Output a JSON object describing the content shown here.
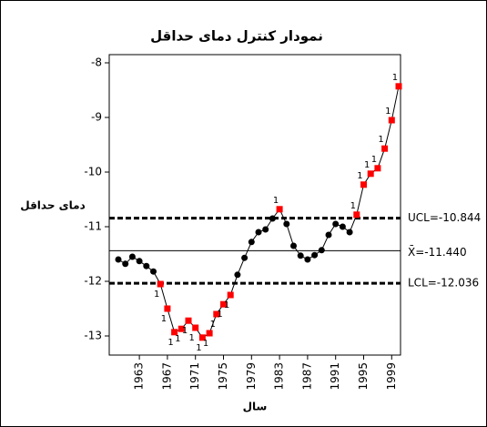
{
  "chart_data": {
    "type": "control",
    "title": "نمودار کنترل دمای حداقل",
    "x_label": "سال",
    "y_label": "دمای حداقل",
    "x": [
      1960,
      1961,
      1962,
      1963,
      1964,
      1965,
      1966,
      1967,
      1968,
      1969,
      1970,
      1971,
      1972,
      1973,
      1974,
      1975,
      1976,
      1977,
      1978,
      1979,
      1980,
      1981,
      1982,
      1983,
      1984,
      1985,
      1986,
      1987,
      1988,
      1989,
      1990,
      1991,
      1992,
      1993,
      1994,
      1995,
      1996,
      1997,
      1998,
      1999,
      2000
    ],
    "series": [
      {
        "color": "#000000",
        "flag_color": "#ff0000",
        "values": [
          -11.6,
          -11.68,
          -11.55,
          -11.63,
          -11.72,
          -11.82,
          -12.05,
          -12.5,
          -12.93,
          -12.87,
          -12.72,
          -12.85,
          -13.03,
          -12.95,
          -12.6,
          -12.42,
          -12.25,
          -11.88,
          -11.57,
          -11.28,
          -11.1,
          -11.05,
          -10.85,
          -10.68,
          -10.95,
          -11.35,
          -11.53,
          -11.6,
          -11.52,
          -11.43,
          -11.15,
          -10.95,
          -11.0,
          -11.1,
          -10.78,
          -10.23,
          -10.03,
          -9.93,
          -9.57,
          -9.05,
          -8.43
        ],
        "flags": [
          null,
          null,
          null,
          null,
          null,
          null,
          "1",
          "1",
          "1",
          "1",
          "1",
          "1",
          "1",
          "1",
          "1",
          "1",
          "1",
          null,
          null,
          null,
          null,
          null,
          null,
          "1",
          null,
          null,
          null,
          null,
          null,
          null,
          null,
          null,
          null,
          null,
          "1",
          "1",
          "1",
          "1",
          "1",
          "1",
          "1"
        ]
      }
    ],
    "control_lines": [
      {
        "value": -10.844,
        "label": "UCL=-10.844",
        "style": "dashed"
      },
      {
        "value": -11.44,
        "label": "X̄=-11.440",
        "style": "solid"
      },
      {
        "value": -12.036,
        "label": "LCL=-12.036",
        "style": "dashed"
      }
    ],
    "xlim": [
      1958.7,
      2000.26
    ],
    "ylim": [
      -13.35,
      -7.85
    ],
    "xticks": [
      1963,
      1967,
      1971,
      1975,
      1979,
      1983,
      1987,
      1991,
      1995,
      1999
    ],
    "yticks": [
      -8,
      -9,
      -10,
      -11,
      -12,
      -13
    ]
  }
}
